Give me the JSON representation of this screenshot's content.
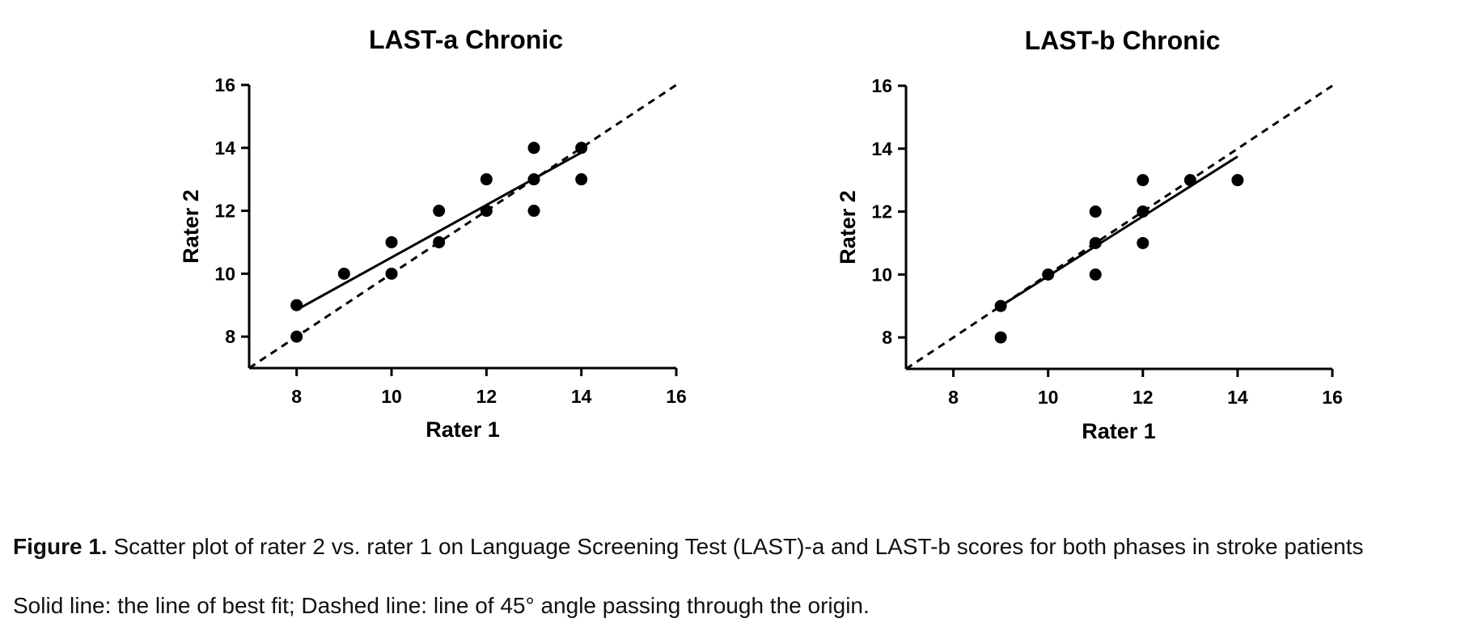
{
  "chart_data": [
    {
      "type": "scatter",
      "title": "LAST-a Chronic",
      "xlabel": "Rater 1",
      "ylabel": "Rater 2",
      "xlim": [
        7,
        16
      ],
      "ylim": [
        7,
        16
      ],
      "xticks": [
        8,
        10,
        12,
        14,
        16
      ],
      "yticks": [
        8,
        10,
        12,
        14,
        16
      ],
      "points": [
        {
          "x": 8,
          "y": 8
        },
        {
          "x": 8,
          "y": 9
        },
        {
          "x": 9,
          "y": 10
        },
        {
          "x": 10,
          "y": 10
        },
        {
          "x": 10,
          "y": 11
        },
        {
          "x": 11,
          "y": 11
        },
        {
          "x": 11,
          "y": 12
        },
        {
          "x": 12,
          "y": 12
        },
        {
          "x": 12,
          "y": 13
        },
        {
          "x": 13,
          "y": 12
        },
        {
          "x": 13,
          "y": 13
        },
        {
          "x": 13,
          "y": 14
        },
        {
          "x": 14,
          "y": 13
        },
        {
          "x": 14,
          "y": 14
        }
      ],
      "fit_line": {
        "x": [
          8,
          14
        ],
        "y": [
          8.85,
          13.85
        ]
      },
      "identity_line": {
        "x": [
          7,
          16
        ],
        "y": [
          7,
          16
        ]
      }
    },
    {
      "type": "scatter",
      "title": "LAST-b Chronic",
      "xlabel": "Rater 1",
      "ylabel": "Rater 2",
      "xlim": [
        7,
        16
      ],
      "ylim": [
        7,
        16
      ],
      "xticks": [
        8,
        10,
        12,
        14,
        16
      ],
      "yticks": [
        8,
        10,
        12,
        14,
        16
      ],
      "points": [
        {
          "x": 9,
          "y": 8
        },
        {
          "x": 9,
          "y": 9
        },
        {
          "x": 10,
          "y": 10
        },
        {
          "x": 11,
          "y": 10
        },
        {
          "x": 11,
          "y": 11
        },
        {
          "x": 11,
          "y": 12
        },
        {
          "x": 12,
          "y": 11
        },
        {
          "x": 12,
          "y": 12
        },
        {
          "x": 12,
          "y": 13
        },
        {
          "x": 13,
          "y": 13
        },
        {
          "x": 14,
          "y": 13
        }
      ],
      "fit_line": {
        "x": [
          9,
          14
        ],
        "y": [
          9.0,
          13.75
        ]
      },
      "identity_line": {
        "x": [
          7,
          16
        ],
        "y": [
          7,
          16
        ]
      }
    }
  ],
  "caption": {
    "label": "Figure 1.",
    "text": " Scatter plot of rater 2 vs. rater 1 on Language Screening Test (LAST)-a and LAST-b scores for both phases in stroke patients",
    "note": "Solid line: the line of best fit; Dashed line: line of 45° angle passing through the origin."
  }
}
